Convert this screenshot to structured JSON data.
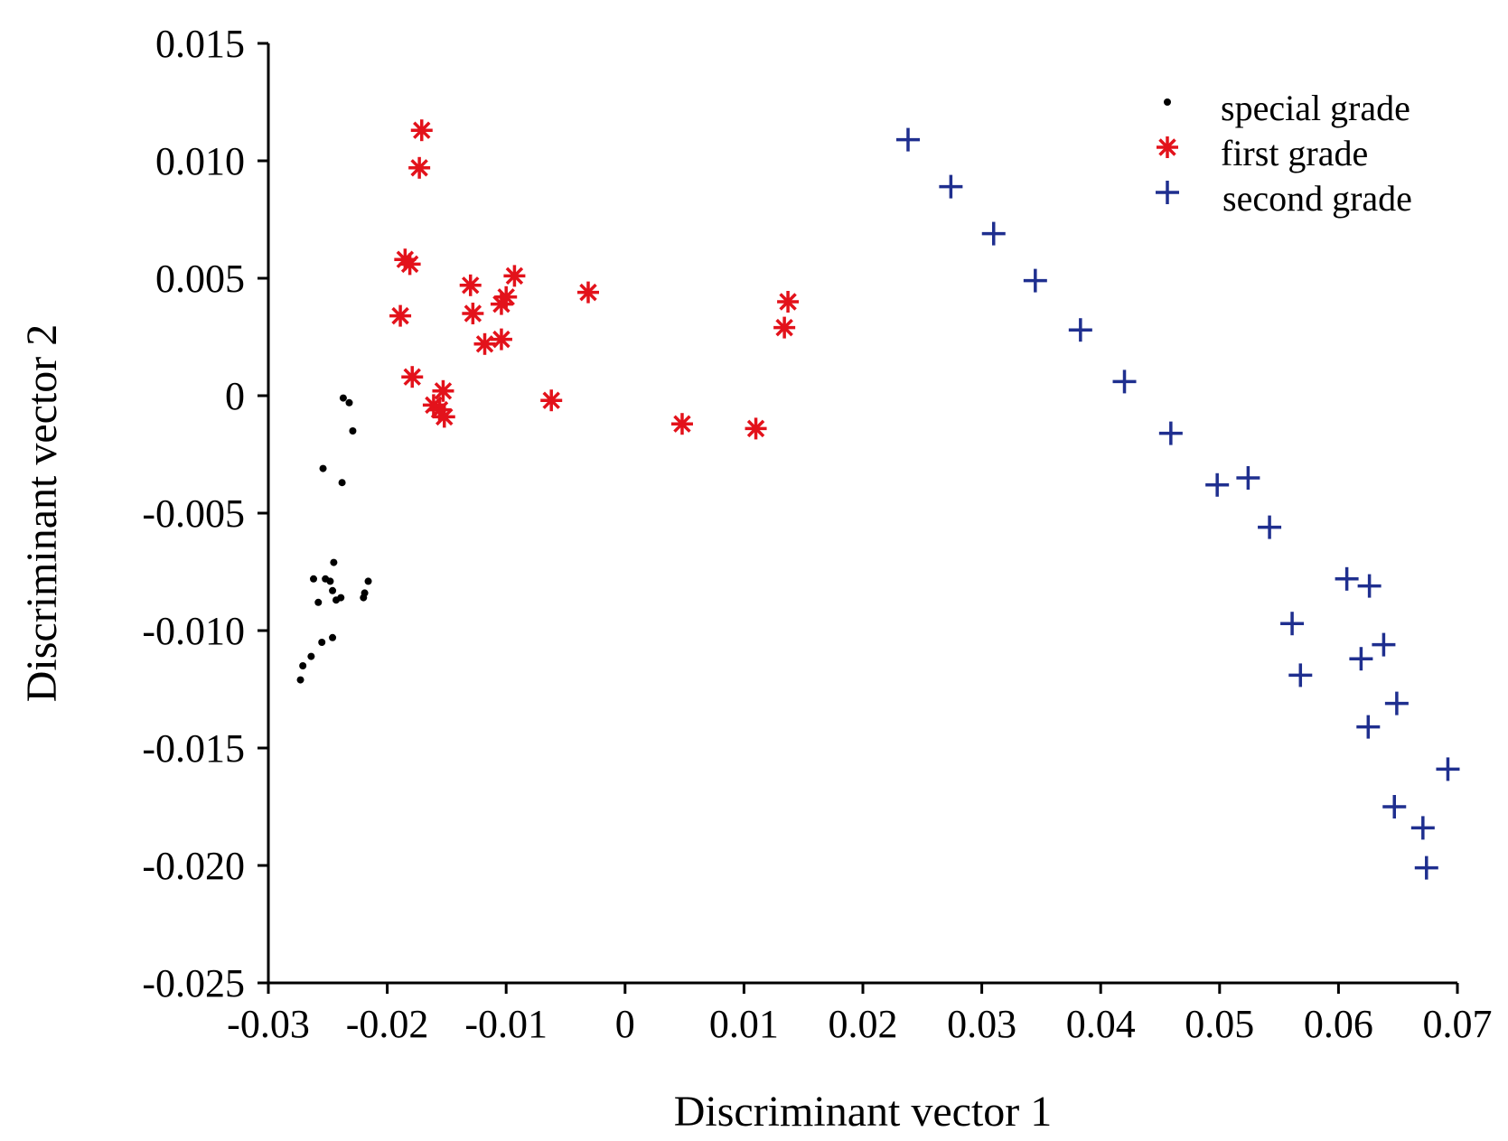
{
  "chart_data": {
    "type": "scatter",
    "title": "",
    "xlabel": "Discriminant vector 1",
    "ylabel": "Discriminant vector 2",
    "xlim": [
      -0.03,
      0.07
    ],
    "ylim": [
      -0.025,
      0.015
    ],
    "x_ticks": [
      -0.03,
      -0.02,
      -0.01,
      0,
      0.01,
      0.02,
      0.03,
      0.04,
      0.05,
      0.06,
      0.07
    ],
    "x_tick_labels": [
      "-0.03",
      "-0.02",
      "-0.01",
      "0",
      "0.01",
      "0.02",
      "0.03",
      "0.04",
      "0.05",
      "0.06",
      "0.07"
    ],
    "y_ticks": [
      0.015,
      0.01,
      0.005,
      0,
      -0.005,
      -0.01,
      -0.015,
      -0.02,
      -0.025
    ],
    "y_tick_labels": [
      "0.015",
      "0.010",
      "0.005",
      "0",
      "-0.005",
      "-0.010",
      "-0.015",
      "-0.020",
      "-0.025"
    ],
    "grid": false,
    "legend_position": "top-right",
    "series": [
      {
        "name": "special grade",
        "marker": "dot",
        "color": "#000000",
        "points": [
          [
            -0.0237,
            -0.0001
          ],
          [
            -0.0232,
            -0.0003
          ],
          [
            -0.0229,
            -0.0015
          ],
          [
            -0.0254,
            -0.0031
          ],
          [
            -0.0238,
            -0.0037
          ],
          [
            -0.0245,
            -0.0071
          ],
          [
            -0.0262,
            -0.0078
          ],
          [
            -0.0252,
            -0.0078
          ],
          [
            -0.0248,
            -0.0079
          ],
          [
            -0.0216,
            -0.0079
          ],
          [
            -0.0246,
            -0.0083
          ],
          [
            -0.0219,
            -0.0084
          ],
          [
            -0.0239,
            -0.0086
          ],
          [
            -0.0243,
            -0.0087
          ],
          [
            -0.0258,
            -0.0088
          ],
          [
            -0.022,
            -0.0086
          ],
          [
            -0.0246,
            -0.0103
          ],
          [
            -0.0255,
            -0.0105
          ],
          [
            -0.0264,
            -0.0111
          ],
          [
            -0.0271,
            -0.0115
          ],
          [
            -0.0273,
            -0.0121
          ]
        ]
      },
      {
        "name": "first grade",
        "marker": "asterisk",
        "color": "#e3121b",
        "points": [
          [
            -0.0171,
            0.0113
          ],
          [
            -0.0173,
            0.0097
          ],
          [
            -0.0185,
            0.0058
          ],
          [
            -0.0181,
            0.0056
          ],
          [
            -0.0189,
            0.0034
          ],
          [
            -0.0179,
            0.0008
          ],
          [
            -0.0153,
            0.0002
          ],
          [
            -0.0161,
            -0.0004
          ],
          [
            -0.0156,
            -0.0006
          ],
          [
            -0.0152,
            -0.0009
          ],
          [
            -0.013,
            0.0047
          ],
          [
            -0.0128,
            0.0035
          ],
          [
            -0.0118,
            0.0022
          ],
          [
            -0.0104,
            0.0039
          ],
          [
            -0.01,
            0.0042
          ],
          [
            -0.0104,
            0.0024
          ],
          [
            -0.0093,
            0.0051
          ],
          [
            -0.0031,
            0.0044
          ],
          [
            -0.0062,
            -0.0002
          ],
          [
            0.0048,
            -0.0012
          ],
          [
            0.011,
            -0.0014
          ],
          [
            0.0137,
            0.004
          ],
          [
            0.0134,
            0.0029
          ]
        ]
      },
      {
        "name": "second grade",
        "marker": "plus",
        "color": "#1f2f8f",
        "points": [
          [
            0.0238,
            0.0109
          ],
          [
            0.0274,
            0.0089
          ],
          [
            0.031,
            0.0069
          ],
          [
            0.0345,
            0.0049
          ],
          [
            0.0383,
            0.0028
          ],
          [
            0.042,
            0.0006
          ],
          [
            0.0459,
            -0.0016
          ],
          [
            0.0498,
            -0.0038
          ],
          [
            0.0524,
            -0.0035
          ],
          [
            0.0542,
            -0.0056
          ],
          [
            0.0561,
            -0.0097
          ],
          [
            0.0568,
            -0.0119
          ],
          [
            0.0607,
            -0.0078
          ],
          [
            0.0626,
            -0.0081
          ],
          [
            0.0638,
            -0.0106
          ],
          [
            0.0619,
            -0.0112
          ],
          [
            0.0649,
            -0.0131
          ],
          [
            0.0625,
            -0.0141
          ],
          [
            0.0692,
            -0.0159
          ],
          [
            0.0647,
            -0.0175
          ],
          [
            0.0671,
            -0.0184
          ],
          [
            0.0674,
            -0.0201
          ]
        ]
      }
    ]
  }
}
